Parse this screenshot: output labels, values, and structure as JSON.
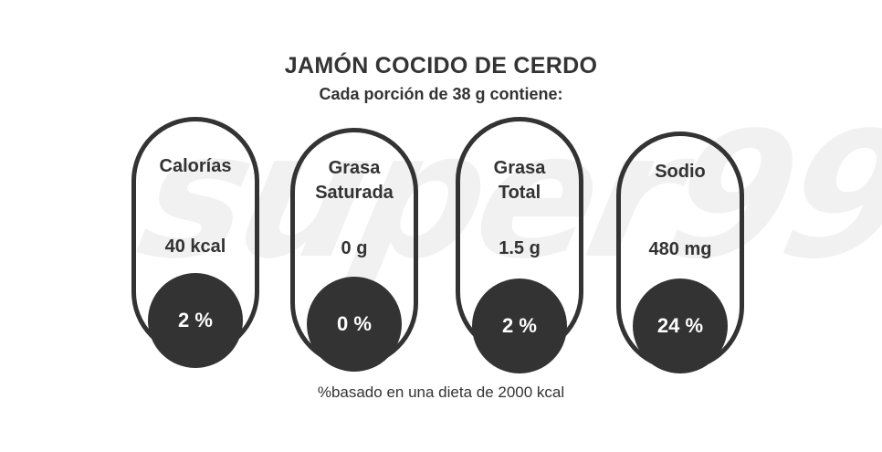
{
  "watermark": "super99",
  "product": {
    "title": "JAMÓN COCIDO DE CERDO",
    "serving": "Cada porción de 38 g contiene:"
  },
  "nutrients": [
    {
      "label_lines": [
        "Calorías"
      ],
      "value": "40 kcal",
      "percent": "2 %"
    },
    {
      "label_lines": [
        "Grasa",
        "Saturada"
      ],
      "value": "0 g",
      "percent": "0 %"
    },
    {
      "label_lines": [
        "Grasa",
        "Total"
      ],
      "value": "1.5 g",
      "percent": "2 %"
    },
    {
      "label_lines": [
        "Sodio"
      ],
      "value": "480 mg",
      "percent": "24 %"
    }
  ],
  "footnote": "%basado en una dieta de 2000 kcal",
  "colors": {
    "ink": "#333333",
    "watermark": "#f1f1f1",
    "background": "#ffffff"
  }
}
